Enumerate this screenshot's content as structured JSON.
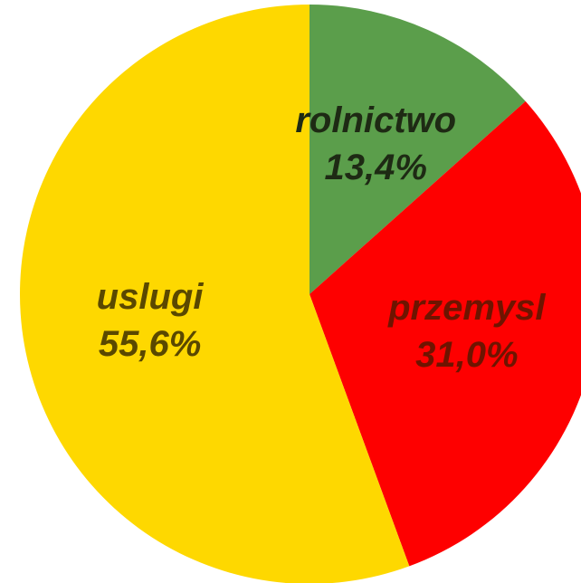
{
  "chart_data": {
    "type": "pie",
    "categories": [
      "rolnictwo",
      "przemysl",
      "uslugi"
    ],
    "values": [
      13.4,
      31.0,
      55.6
    ],
    "value_labels": [
      "13,4%",
      "31,0%",
      "55,6%"
    ],
    "colors": [
      "#5b9e4b",
      "#fe0000",
      "#fed800"
    ]
  }
}
